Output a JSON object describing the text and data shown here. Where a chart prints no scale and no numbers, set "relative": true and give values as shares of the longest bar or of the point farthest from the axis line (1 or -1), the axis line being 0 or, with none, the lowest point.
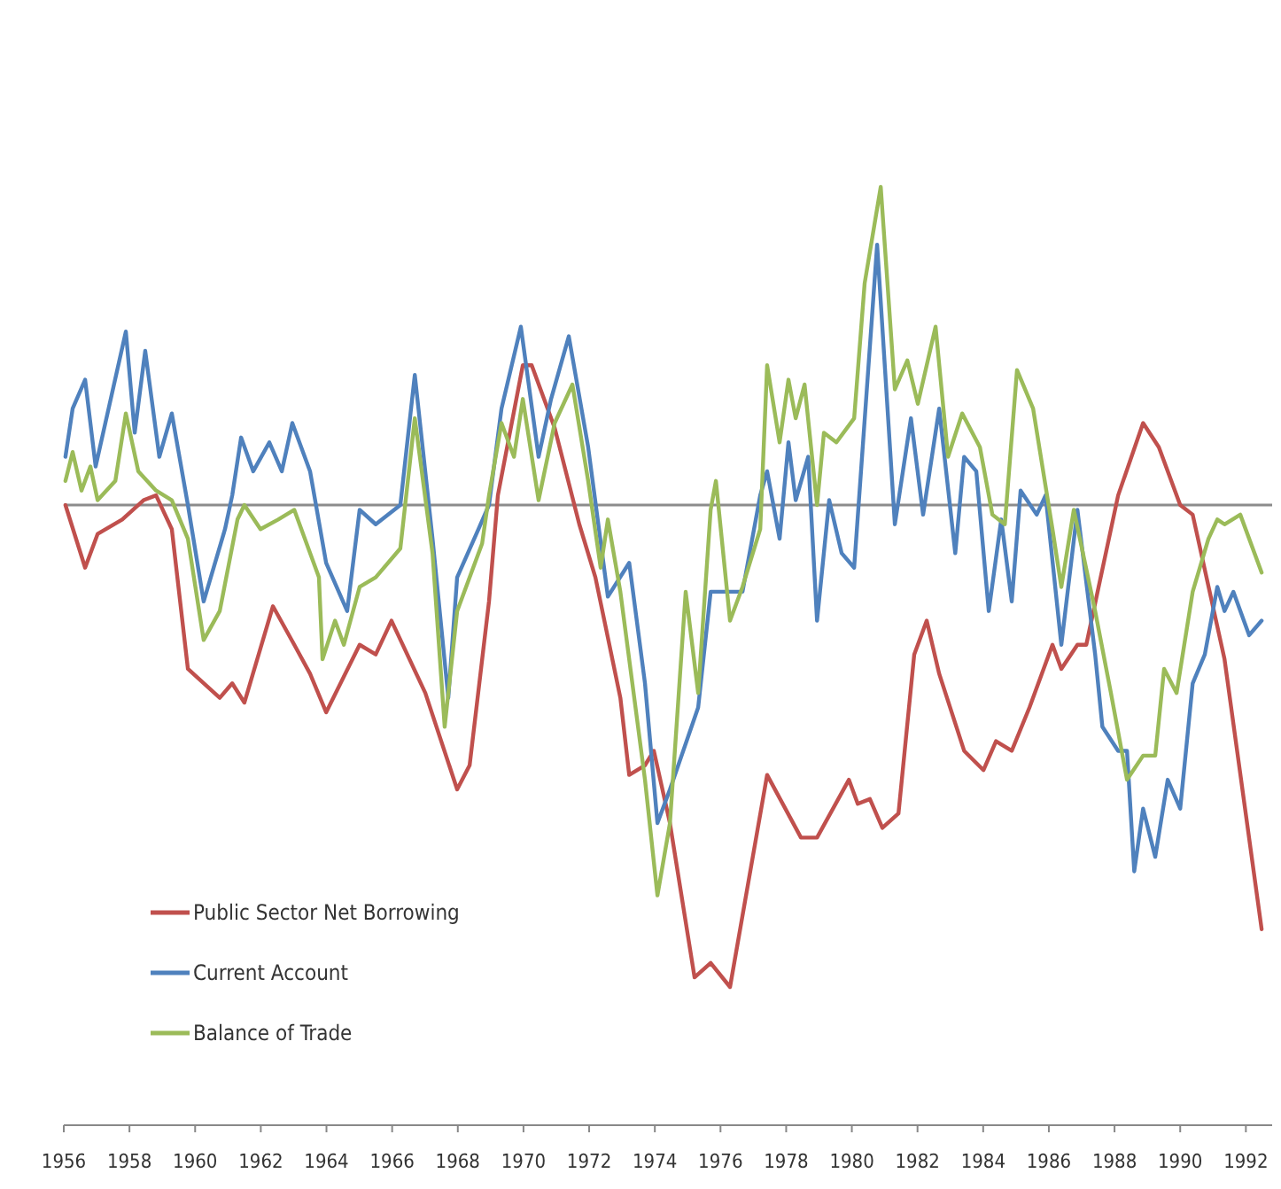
{
  "chart_data": {
    "type": "line",
    "relative": true,
    "xlim": [
      1956,
      1992.8
    ],
    "xticks": [
      1956,
      1958,
      1960,
      1962,
      1964,
      1966,
      1968,
      1970,
      1972,
      1974,
      1976,
      1978,
      1980,
      1982,
      1984,
      1986,
      1988,
      1990,
      1992
    ],
    "legend": "bottom left",
    "marker": "none",
    "line_style": "solid",
    "grid": false,
    "series": [
      {
        "name": "Public Sector Net Borrowing",
        "color": "#c0504d",
        "x": [
          1956.05,
          1956.65,
          1957.03,
          1957.78,
          1958.43,
          1958.81,
          1959.29,
          1959.78,
          1960.75,
          1961.13,
          1961.5,
          1962.37,
          1963.02,
          1963.5,
          1963.99,
          1965.01,
          1965.5,
          1965.98,
          1967.01,
          1967.98,
          1968.36,
          1968.95,
          1969.22,
          1969.98,
          1970.25,
          1970.95,
          1971.7,
          1972.19,
          1972.95,
          1973.22,
          1973.7,
          1973.97,
          1974.46,
          1975.21,
          1975.7,
          1976.29,
          1977.42,
          1978.45,
          1978.94,
          1979.91,
          1980.18,
          1980.55,
          1980.93,
          1981.42,
          1981.9,
          1982.28,
          1982.66,
          1983.42,
          1984.01,
          1984.39,
          1984.87,
          1985.41,
          1986.11,
          1986.38,
          1986.87,
          1987.14,
          1988.11,
          1988.87,
          1989.35,
          1990.0,
          1990.38,
          1991.35,
          1992.48
        ],
        "values": [
          0,
          -0.13,
          -0.06,
          -0.03,
          0.01,
          0.02,
          -0.05,
          -0.34,
          -0.4,
          -0.37,
          -0.41,
          -0.21,
          -0.29,
          -0.35,
          -0.43,
          -0.29,
          -0.31,
          -0.24,
          -0.39,
          -0.59,
          -0.54,
          -0.2,
          0.02,
          0.29,
          0.29,
          0.16,
          -0.04,
          -0.15,
          -0.4,
          -0.56,
          -0.54,
          -0.51,
          -0.66,
          -0.98,
          -0.95,
          -1,
          -0.56,
          -0.69,
          -0.69,
          -0.57,
          -0.62,
          -0.61,
          -0.67,
          -0.64,
          -0.31,
          -0.24,
          -0.35,
          -0.51,
          -0.55,
          -0.49,
          -0.51,
          -0.42,
          -0.29,
          -0.34,
          -0.29,
          -0.29,
          0.02,
          0.17,
          0.12,
          0,
          -0.02,
          -0.32,
          -0.88
        ]
      },
      {
        "name": "Current Account",
        "color": "#4f81bd",
        "x": [
          1956.05,
          1956.27,
          1956.65,
          1956.97,
          1957.89,
          1958.16,
          1958.48,
          1958.91,
          1959.29,
          1959.78,
          1960.26,
          1960.91,
          1961.13,
          1961.4,
          1961.77,
          1962.26,
          1962.64,
          1962.96,
          1963.5,
          1963.99,
          1964.63,
          1965.01,
          1965.5,
          1966.25,
          1966.69,
          1967.23,
          1967.71,
          1967.98,
          1968.63,
          1968.95,
          1969.33,
          1969.92,
          1970.46,
          1970.84,
          1971.38,
          1971.97,
          1972.57,
          1973.22,
          1973.7,
          1974.08,
          1974.46,
          1975.32,
          1975.7,
          1976.67,
          1977.21,
          1977.42,
          1977.8,
          1978.07,
          1978.29,
          1978.67,
          1978.94,
          1979.31,
          1979.69,
          1980.07,
          1980.77,
          1981.31,
          1981.8,
          1982.17,
          1982.66,
          1983.15,
          1983.42,
          1983.79,
          1984.17,
          1984.55,
          1984.87,
          1985.14,
          1985.63,
          1985.9,
          1986.38,
          1986.87,
          1987.41,
          1987.63,
          1988.11,
          1988.38,
          1988.6,
          1988.87,
          1989.24,
          1989.62,
          1990.0,
          1990.38,
          1990.75,
          1991.13,
          1991.35,
          1991.62,
          1992.1,
          1992.48
        ],
        "values": [
          0.1,
          0.2,
          0.26,
          0.08,
          0.36,
          0.15,
          0.32,
          0.1,
          0.19,
          0,
          -0.2,
          -0.05,
          0.02,
          0.14,
          0.07,
          0.13,
          0.07,
          0.17,
          0.07,
          -0.12,
          -0.22,
          -0.01,
          -0.04,
          0,
          0.27,
          -0.07,
          -0.4,
          -0.15,
          -0.05,
          0,
          0.2,
          0.37,
          0.1,
          0.22,
          0.35,
          0.12,
          -0.19,
          -0.12,
          -0.37,
          -0.66,
          -0.59,
          -0.42,
          -0.18,
          -0.18,
          0.02,
          0.07,
          -0.07,
          0.13,
          0.01,
          0.1,
          -0.24,
          0.01,
          -0.1,
          -0.13,
          0.54,
          -0.04,
          0.18,
          -0.02,
          0.2,
          -0.1,
          0.1,
          0.07,
          -0.22,
          -0.03,
          -0.2,
          0.03,
          -0.02,
          0.02,
          -0.29,
          -0.01,
          -0.31,
          -0.46,
          -0.51,
          -0.51,
          -0.76,
          -0.63,
          -0.73,
          -0.57,
          -0.63,
          -0.37,
          -0.31,
          -0.17,
          -0.22,
          -0.18,
          -0.27,
          -0.24
        ]
      },
      {
        "name": "Balance of Trade",
        "color": "#9bbb59",
        "x": [
          1956.05,
          1956.27,
          1956.54,
          1956.81,
          1957.03,
          1957.57,
          1957.89,
          1958.27,
          1958.81,
          1959.29,
          1959.78,
          1960.26,
          1960.75,
          1961.29,
          1961.5,
          1961.99,
          1962.53,
          1963.02,
          1963.77,
          1963.88,
          1964.26,
          1964.53,
          1965.01,
          1965.5,
          1966.25,
          1966.69,
          1967.23,
          1967.6,
          1967.98,
          1968.74,
          1968.95,
          1969.33,
          1969.71,
          1969.98,
          1970.46,
          1970.95,
          1971.49,
          1971.97,
          1972.35,
          1972.57,
          1972.95,
          1973.7,
          1974.08,
          1974.46,
          1974.94,
          1975.32,
          1975.7,
          1975.86,
          1976.29,
          1976.67,
          1977.21,
          1977.42,
          1977.8,
          1978.07,
          1978.29,
          1978.56,
          1978.94,
          1979.15,
          1979.53,
          1980.07,
          1980.39,
          1980.88,
          1981.31,
          1981.69,
          1982.01,
          1982.55,
          1982.93,
          1983.36,
          1983.9,
          1984.28,
          1984.66,
          1985.03,
          1985.52,
          1986.11,
          1986.38,
          1986.76,
          1987.41,
          1987.89,
          1988.38,
          1988.87,
          1989.24,
          1989.51,
          1989.89,
          1990.38,
          1990.86,
          1991.13,
          1991.35,
          1991.83,
          1992.48
        ],
        "values": [
          0.05,
          0.11,
          0.03,
          0.08,
          0.01,
          0.05,
          0.19,
          0.07,
          0.03,
          0.01,
          -0.07,
          -0.28,
          -0.22,
          -0.03,
          0,
          -0.05,
          -0.03,
          -0.01,
          -0.15,
          -0.32,
          -0.24,
          -0.29,
          -0.17,
          -0.15,
          -0.09,
          0.18,
          -0.1,
          -0.46,
          -0.22,
          -0.08,
          0.02,
          0.17,
          0.1,
          0.22,
          0.01,
          0.17,
          0.25,
          0.05,
          -0.13,
          -0.03,
          -0.18,
          -0.57,
          -0.81,
          -0.66,
          -0.18,
          -0.39,
          -0.01,
          0.05,
          -0.24,
          -0.17,
          -0.05,
          0.29,
          0.13,
          0.26,
          0.18,
          0.25,
          0,
          0.15,
          0.13,
          0.18,
          0.46,
          0.66,
          0.24,
          0.3,
          0.21,
          0.37,
          0.1,
          0.19,
          0.12,
          -0.02,
          -0.04,
          0.28,
          0.2,
          -0.05,
          -0.17,
          -0.01,
          -0.22,
          -0.39,
          -0.57,
          -0.52,
          -0.52,
          -0.34,
          -0.39,
          -0.18,
          -0.07,
          -0.03,
          -0.04,
          -0.02,
          -0.14
        ]
      }
    ]
  }
}
